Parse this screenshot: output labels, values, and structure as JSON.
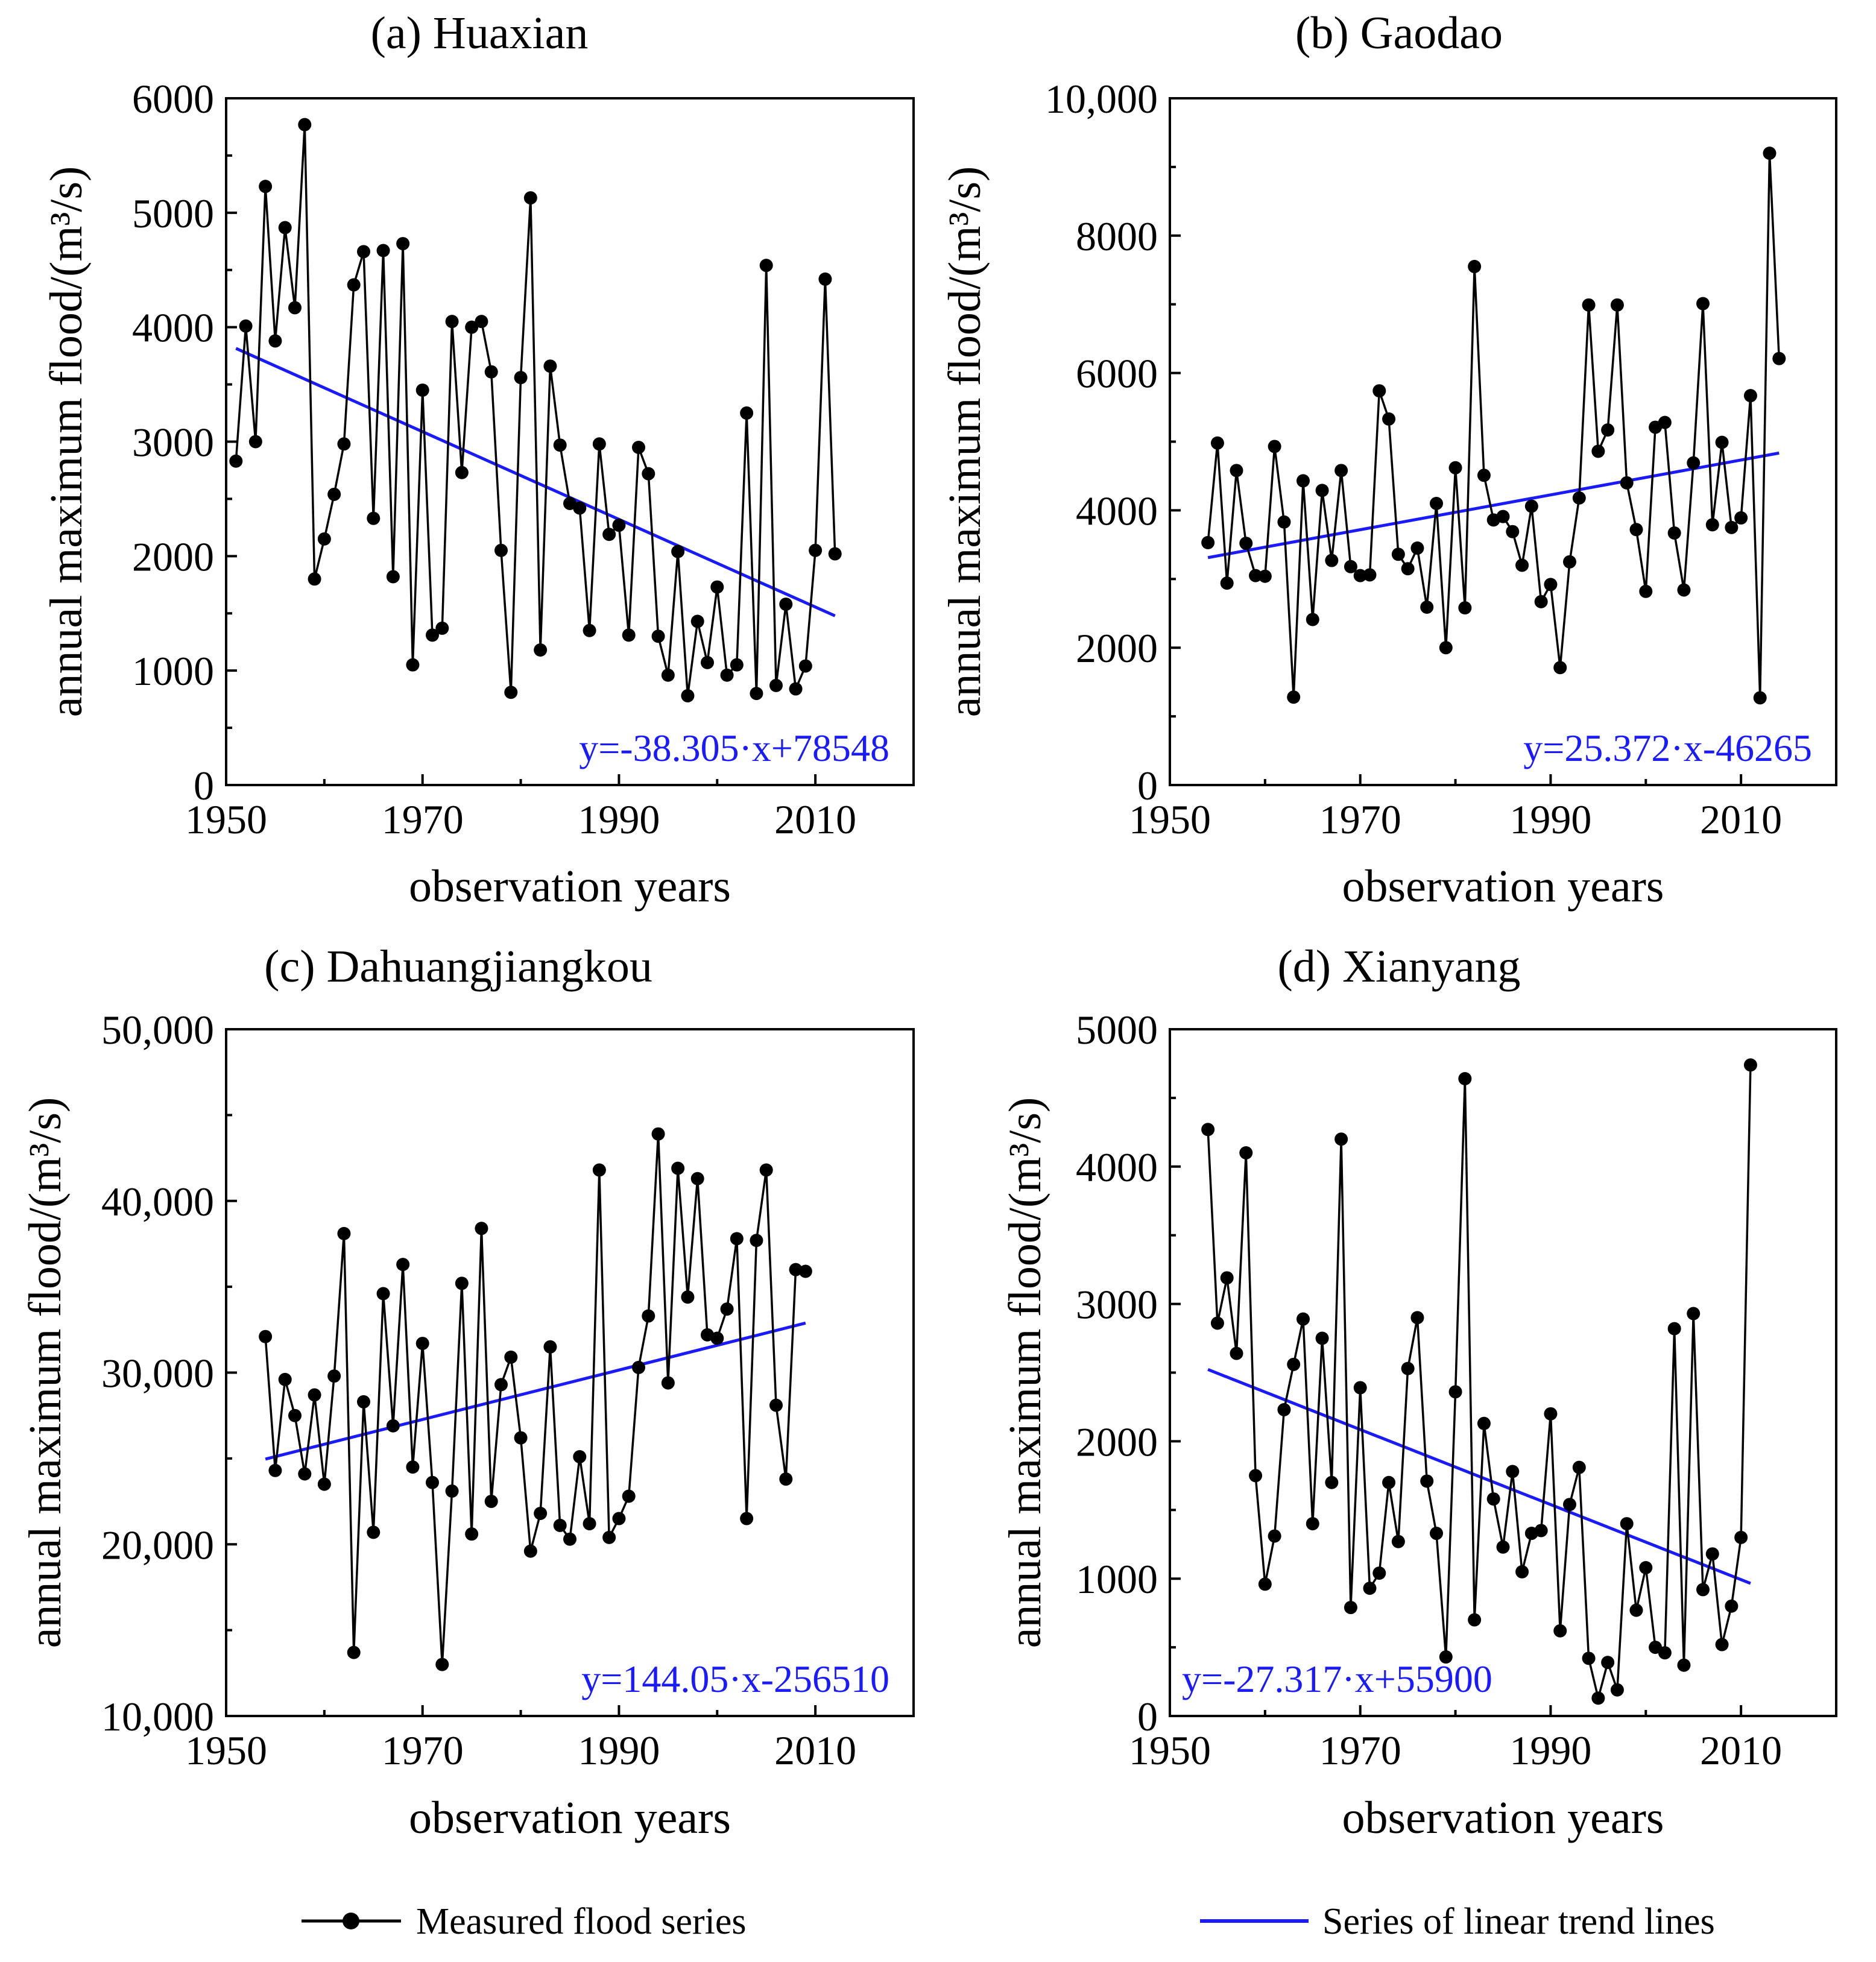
{
  "legend": {
    "measured_label": "Measured flood series",
    "trend_label": "Series of linear trend lines"
  },
  "colors": {
    "measured": "#000000",
    "trend": "#1a1aff"
  },
  "chart_data": [
    {
      "type": "line",
      "title": "(a) Huaxian",
      "xlabel": "observation years",
      "ylabel": "annual maximum flood/(m³/s)",
      "xlim": [
        1950,
        2020
      ],
      "ylim": [
        0,
        6000
      ],
      "xticks": [
        1950,
        1970,
        1990,
        2010
      ],
      "yticks": [
        0,
        1000,
        2000,
        3000,
        4000,
        5000,
        6000
      ],
      "ytick_labels": [
        "0",
        "1000",
        "2000",
        "3000",
        "4000",
        "5000",
        "6000"
      ],
      "series": [
        {
          "name": "Measured flood series",
          "x": [
            1951,
            1952,
            1953,
            1954,
            1955,
            1956,
            1957,
            1958,
            1959,
            1960,
            1961,
            1962,
            1963,
            1964,
            1965,
            1966,
            1967,
            1968,
            1969,
            1970,
            1971,
            1972,
            1973,
            1974,
            1975,
            1976,
            1977,
            1978,
            1979,
            1980,
            1981,
            1982,
            1983,
            1984,
            1985,
            1986,
            1987,
            1988,
            1989,
            1990,
            1991,
            1992,
            1993,
            1994,
            1995,
            1996,
            1997,
            1998,
            1999,
            2000,
            2001,
            2002,
            2003,
            2004,
            2005,
            2006,
            2007,
            2008,
            2009,
            2010,
            2011,
            2012
          ],
          "values": [
            2830,
            4010,
            3000,
            5230,
            3880,
            4870,
            4170,
            5770,
            1800,
            2150,
            2540,
            2980,
            4370,
            4660,
            2330,
            4670,
            1820,
            4730,
            1050,
            3450,
            1310,
            1370,
            4050,
            2730,
            4000,
            4050,
            3610,
            2050,
            810,
            3560,
            5130,
            1180,
            3660,
            2970,
            2460,
            2420,
            1350,
            2980,
            2190,
            2270,
            1310,
            2950,
            2720,
            1300,
            960,
            2040,
            780,
            1430,
            1070,
            1730,
            960,
            1050,
            3250,
            800,
            4540,
            870,
            1580,
            840,
            1040,
            2050,
            4420,
            2020
          ]
        }
      ],
      "trend": {
        "name": "Series of linear trend lines",
        "slope": -38.305,
        "intercept": 78548,
        "x_range": [
          1951,
          2012
        ],
        "label": "y=-38.305·x+78548",
        "label_position": "bottom-right"
      }
    },
    {
      "type": "line",
      "title": "(b) Gaodao",
      "xlabel": "observation years",
      "ylabel": "annual maximum flood/(m³/s)",
      "xlim": [
        1950,
        2020
      ],
      "ylim": [
        0,
        10000
      ],
      "xticks": [
        1950,
        1970,
        1990,
        2010
      ],
      "yticks": [
        0,
        2000,
        4000,
        6000,
        8000,
        10000
      ],
      "ytick_labels": [
        "0",
        "2000",
        "4000",
        "6000",
        "8000",
        "10,000"
      ],
      "series": [
        {
          "name": "Measured flood series",
          "x": [
            1954,
            1955,
            1956,
            1957,
            1958,
            1959,
            1960,
            1961,
            1962,
            1963,
            1964,
            1965,
            1966,
            1967,
            1968,
            1969,
            1970,
            1971,
            1972,
            1973,
            1974,
            1975,
            1976,
            1977,
            1978,
            1979,
            1980,
            1981,
            1982,
            1983,
            1984,
            1985,
            1986,
            1987,
            1988,
            1989,
            1990,
            1991,
            1992,
            1993,
            1994,
            1995,
            1996,
            1997,
            1998,
            1999,
            2000,
            2001,
            2002,
            2003,
            2004,
            2005,
            2006,
            2007,
            2008,
            2009,
            2010,
            2011,
            2012,
            2013,
            2014
          ],
          "values": [
            3530,
            4980,
            2940,
            4580,
            3520,
            3050,
            3040,
            4930,
            3830,
            1280,
            4430,
            2410,
            4290,
            3270,
            4580,
            3180,
            3050,
            3060,
            5740,
            5330,
            3360,
            3150,
            3450,
            2590,
            4100,
            2000,
            4620,
            2580,
            7550,
            4510,
            3860,
            3910,
            3690,
            3200,
            4060,
            2670,
            2920,
            1710,
            3250,
            4180,
            6990,
            4860,
            5170,
            6990,
            4400,
            3720,
            2820,
            5210,
            5280,
            3670,
            2840,
            4690,
            7010,
            3790,
            4990,
            3750,
            3890,
            5670,
            1270,
            9200,
            6210
          ]
        }
      ],
      "trend": {
        "name": "Series of linear trend lines",
        "slope": 25.372,
        "intercept": -46265,
        "x_range": [
          1954,
          2014
        ],
        "label": "y=25.372·x-46265",
        "label_position": "bottom-right"
      }
    },
    {
      "type": "line",
      "title": "(c) Dahuangjiangkou",
      "xlabel": "observation years",
      "ylabel": "annual maximum flood/(m³/s)",
      "xlim": [
        1950,
        2020
      ],
      "ylim": [
        10000,
        50000
      ],
      "xticks": [
        1950,
        1970,
        1990,
        2010
      ],
      "yticks": [
        10000,
        20000,
        30000,
        40000,
        50000
      ],
      "ytick_labels": [
        "10,000",
        "20,000",
        "30,000",
        "40,000",
        "50,000"
      ],
      "series": [
        {
          "name": "Measured flood series",
          "x": [
            1954,
            1955,
            1956,
            1957,
            1958,
            1959,
            1960,
            1961,
            1962,
            1963,
            1964,
            1965,
            1966,
            1967,
            1968,
            1969,
            1970,
            1971,
            1972,
            1973,
            1974,
            1975,
            1976,
            1977,
            1978,
            1979,
            1980,
            1981,
            1982,
            1983,
            1984,
            1985,
            1986,
            1987,
            1988,
            1989,
            1990,
            1991,
            1992,
            1993,
            1994,
            1995,
            1996,
            1997,
            1998,
            1999,
            2000,
            2001,
            2002,
            2003,
            2004,
            2005,
            2006,
            2007,
            2008,
            2009
          ],
          "values": [
            32100,
            24300,
            29600,
            27500,
            24100,
            28700,
            23500,
            29800,
            38100,
            13700,
            28300,
            20700,
            34600,
            26900,
            36300,
            24500,
            31700,
            23600,
            13000,
            23100,
            35200,
            20600,
            38400,
            22500,
            29300,
            30900,
            26200,
            19600,
            21800,
            31500,
            21100,
            20300,
            25100,
            21200,
            41800,
            20400,
            21500,
            22800,
            30300,
            33300,
            43900,
            29400,
            41900,
            34400,
            41300,
            32200,
            32000,
            33700,
            37800,
            21500,
            37700,
            41800,
            28100,
            23800,
            36000,
            35900
          ]
        }
      ],
      "trend": {
        "name": "Series of linear trend lines",
        "slope": 144.05,
        "intercept": -256510,
        "x_range": [
          1954,
          2009
        ],
        "label": "y=144.05·x-256510",
        "label_position": "bottom-right"
      }
    },
    {
      "type": "line",
      "title": "(d) Xianyang",
      "xlabel": "observation years",
      "ylabel": "annual maximum flood/(m³/s)",
      "xlim": [
        1950,
        2020
      ],
      "ylim": [
        0,
        5000
      ],
      "xticks": [
        1950,
        1970,
        1990,
        2010
      ],
      "yticks": [
        0,
        1000,
        2000,
        3000,
        4000,
        5000
      ],
      "ytick_labels": [
        "0",
        "1000",
        "2000",
        "3000",
        "4000",
        "5000"
      ],
      "series": [
        {
          "name": "Measured flood series",
          "x": [
            1954,
            1955,
            1956,
            1957,
            1958,
            1959,
            1960,
            1961,
            1962,
            1963,
            1964,
            1965,
            1966,
            1967,
            1968,
            1969,
            1970,
            1971,
            1972,
            1973,
            1974,
            1975,
            1976,
            1977,
            1978,
            1979,
            1980,
            1981,
            1982,
            1983,
            1984,
            1985,
            1986,
            1987,
            1988,
            1989,
            1990,
            1991,
            1992,
            1993,
            1994,
            1995,
            1996,
            1997,
            1998,
            1999,
            2000,
            2001,
            2002,
            2003,
            2004,
            2005,
            2006,
            2007,
            2008,
            2009,
            2010,
            2011
          ],
          "values": [
            4270,
            2860,
            3190,
            2640,
            4100,
            1750,
            960,
            1310,
            2230,
            2560,
            2890,
            1400,
            2750,
            1700,
            4200,
            790,
            2390,
            930,
            1040,
            1700,
            1270,
            2530,
            2900,
            1710,
            1330,
            430,
            2360,
            4640,
            700,
            2130,
            1580,
            1230,
            1780,
            1050,
            1330,
            1350,
            2200,
            620,
            1540,
            1810,
            420,
            130,
            390,
            190,
            1400,
            770,
            1080,
            500,
            460,
            2820,
            370,
            2930,
            920,
            1180,
            520,
            800,
            1300,
            4740
          ]
        }
      ],
      "trend": {
        "name": "Series of linear trend lines",
        "slope": -27.317,
        "intercept": 55900,
        "x_range": [
          1954,
          2011
        ],
        "label": "y=-27.317·x+55900",
        "label_position": "bottom-left"
      }
    }
  ]
}
